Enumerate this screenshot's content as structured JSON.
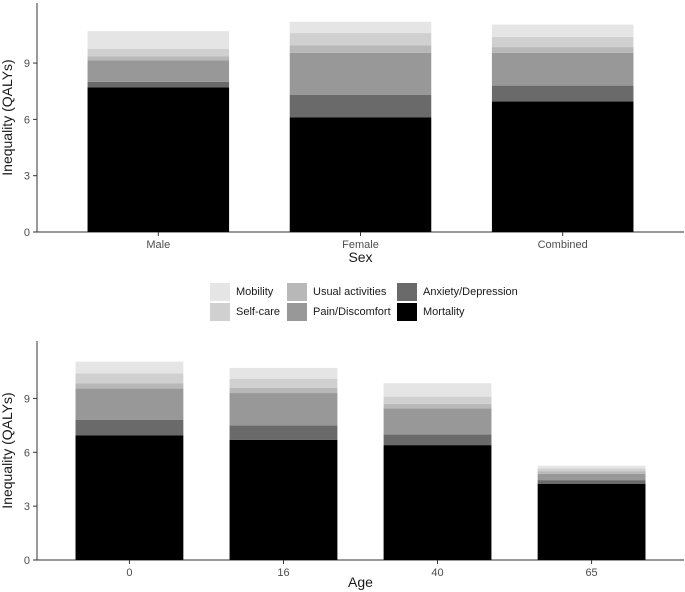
{
  "colors": {
    "Mobility": "#e5e5e5",
    "Self-care": "#d0d0d0",
    "Usual activities": "#b8b8b8",
    "Pain/Discomfort": "#989898",
    "Anxiety/Depression": "#6a6a6a",
    "Mortality": "#000000"
  },
  "legend": {
    "items": [
      "Mobility",
      "Self-care",
      "Usual activities",
      "Pain/Discomfort",
      "Anxiety/Depression",
      "Mortality"
    ]
  },
  "chart_data": [
    {
      "type": "bar",
      "stacked": true,
      "title": "",
      "xlabel": "Sex",
      "ylabel": "Inequality (QALYs)",
      "ylim": [
        0,
        12.2
      ],
      "yticks": [
        0,
        3,
        6,
        9
      ],
      "grid": false,
      "categories": [
        "Male",
        "Female",
        "Combined"
      ],
      "series": [
        {
          "name": "Mortality",
          "values": [
            7.7,
            6.1,
            6.95
          ]
        },
        {
          "name": "Anxiety/Depression",
          "values": [
            0.3,
            1.2,
            0.85
          ]
        },
        {
          "name": "Pain/Discomfort",
          "values": [
            1.15,
            2.25,
            1.75
          ]
        },
        {
          "name": "Usual activities",
          "values": [
            0.2,
            0.4,
            0.3
          ]
        },
        {
          "name": "Self-care",
          "values": [
            0.4,
            0.65,
            0.55
          ]
        },
        {
          "name": "Mobility",
          "values": [
            0.95,
            0.6,
            0.65
          ]
        }
      ]
    },
    {
      "type": "bar",
      "stacked": true,
      "title": "",
      "xlabel": "Age",
      "ylabel": "Inequality (QALYs)",
      "ylim": [
        0,
        12.2
      ],
      "yticks": [
        0,
        3,
        6,
        9
      ],
      "grid": false,
      "categories": [
        "0",
        "16",
        "40",
        "65"
      ],
      "series": [
        {
          "name": "Mortality",
          "values": [
            6.95,
            6.7,
            6.4,
            4.25
          ]
        },
        {
          "name": "Anxiety/Depression",
          "values": [
            0.85,
            0.8,
            0.6,
            0.2
          ]
        },
        {
          "name": "Pain/Discomfort",
          "values": [
            1.75,
            1.8,
            1.45,
            0.35
          ]
        },
        {
          "name": "Usual activities",
          "values": [
            0.3,
            0.3,
            0.25,
            0.15
          ]
        },
        {
          "name": "Self-care",
          "values": [
            0.55,
            0.5,
            0.4,
            0.15
          ]
        },
        {
          "name": "Mobility",
          "values": [
            0.65,
            0.6,
            0.75,
            0.15
          ]
        }
      ]
    }
  ]
}
